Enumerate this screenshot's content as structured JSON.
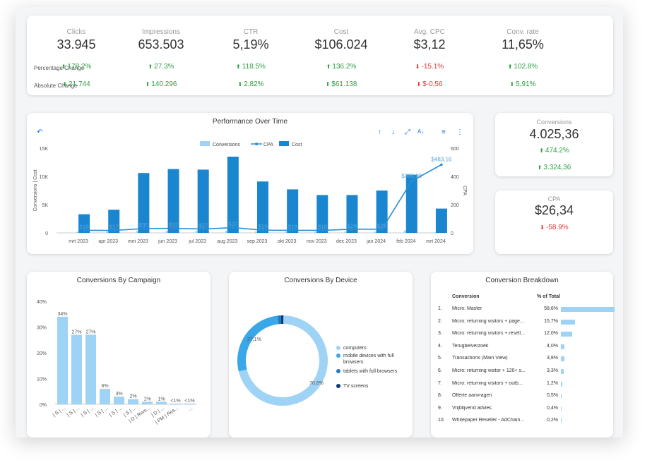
{
  "kpis": [
    {
      "label": "Clicks",
      "value": "33.945",
      "pct": "178.2%",
      "abs": "21.744",
      "dir_pct": "up",
      "dir_abs": "up"
    },
    {
      "label": "Impressions",
      "value": "653.503",
      "pct": "27.3%",
      "abs": "140.296",
      "dir_pct": "up",
      "dir_abs": "up"
    },
    {
      "label": "CTR",
      "value": "5,19%",
      "pct": "118.5%",
      "abs": "2,82%",
      "dir_pct": "up",
      "dir_abs": "up"
    },
    {
      "label": "Cost",
      "value": "$106.024",
      "pct": "136.2%",
      "abs": "$61.138",
      "dir_pct": "up",
      "dir_abs": "up"
    },
    {
      "label": "Avg. CPC",
      "value": "$3,12",
      "pct": "-15.1%",
      "abs": "$-0,56",
      "dir_pct": "down",
      "dir_abs": "down"
    },
    {
      "label": "Conv. rate",
      "value": "11,65%",
      "pct": "102.8%",
      "abs": "5,91%",
      "dir_pct": "up",
      "dir_abs": "up"
    }
  ],
  "row_labels": {
    "pct": "Percentage Change",
    "abs": "Absolute Change"
  },
  "colors": {
    "up": "#2e9e43",
    "down": "#e53935",
    "conversions": "#9fd3f5",
    "cost": "#1a86d0",
    "cpa": "#2a8fd6",
    "accent": "#1a73e8"
  },
  "performance": {
    "title": "Performance Over Time",
    "legend": [
      "Conversions",
      "CPA",
      "Cost"
    ],
    "y_left_ticks": [
      "15K",
      "10K",
      "5K",
      "0"
    ],
    "y_right_ticks": [
      "600",
      "400",
      "200",
      "0"
    ],
    "y_left_label": "Conversions | Cost",
    "y_right_label": "CPA"
  },
  "chart_data": {
    "type": "bar",
    "categories": [
      "mrt 2023",
      "apr 2023",
      "mei 2023",
      "jun 2023",
      "jul 2023",
      "aug 2023",
      "sep 2023",
      "okt 2023",
      "nov 2023",
      "dec 2023",
      "jan 2024",
      "feb 2024",
      "mrt 2024"
    ],
    "series": [
      {
        "name": "Cost",
        "values": [
          3300,
          4100,
          10600,
          11300,
          11200,
          13500,
          9100,
          7700,
          6700,
          6700,
          7500,
          10300,
          4300
        ]
      },
      {
        "name": "Conversions",
        "values": [
          200,
          240,
          330,
          350,
          350,
          360,
          240,
          190,
          190,
          220,
          240,
          400,
          100
        ]
      },
      {
        "name": "CPA",
        "values": [
          18,
          17,
          30,
          32,
          27,
          37,
          19,
          18,
          18,
          26,
          26,
          366.08,
          483.16
        ]
      }
    ],
    "cpa_labels": [
      "$18",
      "$17",
      "$30",
      "$32",
      "$27",
      "$37",
      "$19",
      "$18",
      "$18",
      "$26",
      "$26",
      "$366,08",
      "$483,16"
    ],
    "ylim_left": [
      0,
      15000
    ],
    "ylim_right": [
      0,
      600
    ]
  },
  "conversions": {
    "label": "Conversions",
    "value": "4.025,36",
    "pct": "474.2%",
    "abs": "3.324,36"
  },
  "cpa_card": {
    "label": "CPA",
    "value": "$26,34",
    "pct": "-58.9%"
  },
  "campaign": {
    "title": "Conversions By Campaign",
    "y_ticks": [
      "40%",
      "30%",
      "20%",
      "10%",
      "0%"
    ],
    "values": [
      34,
      27,
      27,
      6,
      3,
      2,
      1,
      1,
      0.3,
      0.3
    ],
    "labels": [
      "34%",
      "27%",
      "27%",
      "6%",
      "3%",
      "2%",
      "1%",
      "1%",
      "<1%",
      "<1%"
    ],
    "categories": [
      "| S | ...",
      "| S | ...",
      "| S | ...",
      "| S | ...",
      "| S | ...",
      "| S | ...",
      "| D | Rem...",
      "| D | ...",
      "| PM | Res...",
      "..."
    ]
  },
  "device": {
    "title": "Conversions By Device",
    "labels": [
      "70,8%",
      "27,1%"
    ],
    "legend": [
      "computers",
      "mobile devices with full browsers",
      "tablets with full browsers",
      "TV screens"
    ],
    "legend_colors": [
      "#9fd3f5",
      "#3aa7e8",
      "#1e7bc4",
      "#0a3a7a"
    ]
  },
  "breakdown": {
    "title": "Conversion Breakdown",
    "col_conversion": "Conversion",
    "col_pct": "% of Total",
    "rows": [
      {
        "n": "1.",
        "name": "Micro: Master",
        "pct": "58,6%",
        "v": 58.6
      },
      {
        "n": "2.",
        "name": "Micro: returning visitors + page...",
        "pct": "15,7%",
        "v": 15.7
      },
      {
        "n": "3.",
        "name": "Micro: returning visitors + resell...",
        "pct": "12,0%",
        "v": 12.0
      },
      {
        "n": "4.",
        "name": "Terugbelverzoek",
        "pct": "4,0%",
        "v": 4.0
      },
      {
        "n": "5.",
        "name": "Transactions (Main View)",
        "pct": "3,8%",
        "v": 3.8
      },
      {
        "n": "6.",
        "name": "Micro: returning visitor + 120+ s...",
        "pct": "3,3%",
        "v": 3.3
      },
      {
        "n": "7.",
        "name": "Micro: returning visitors + outb...",
        "pct": "1,2%",
        "v": 1.2
      },
      {
        "n": "8.",
        "name": "Offerte aanvragen",
        "pct": "0,5%",
        "v": 0.5
      },
      {
        "n": "9.",
        "name": "Vrijblijvend advies",
        "pct": "0,4%",
        "v": 0.4
      },
      {
        "n": "10.",
        "name": "Whitepaper Reseller - AdCham...",
        "pct": "0,2%",
        "v": 0.2
      }
    ]
  }
}
